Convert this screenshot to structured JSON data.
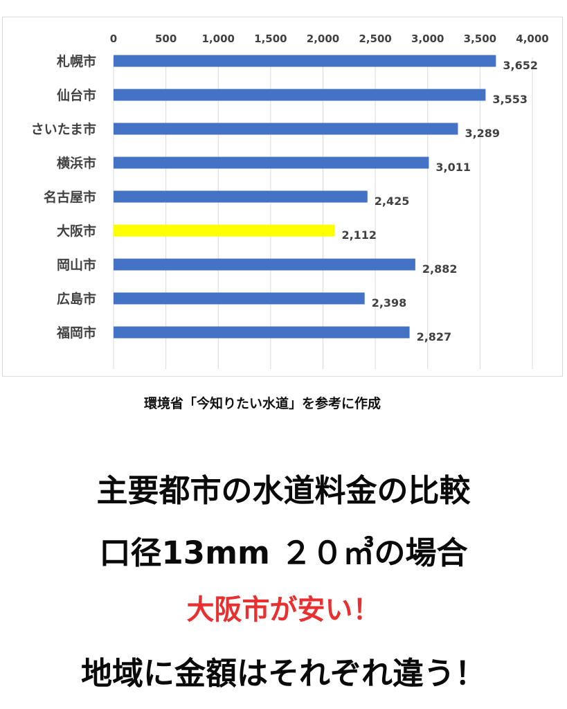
{
  "chart_data": {
    "type": "bar",
    "orientation": "horizontal",
    "categories": [
      "札幌市",
      "仙台市",
      "さいたま市",
      "横浜市",
      "名古屋市",
      "大阪市",
      "岡山市",
      "広島市",
      "福岡市"
    ],
    "values": [
      3652,
      3553,
      3289,
      3011,
      2425,
      2112,
      2882,
      2398,
      2827
    ],
    "value_labels": [
      "3,652",
      "3,553",
      "3,289",
      "3,011",
      "2,425",
      "2,112",
      "2,882",
      "2,398",
      "2,827"
    ],
    "x_ticks": [
      0,
      500,
      1000,
      1500,
      2000,
      2500,
      3000,
      3500,
      4000
    ],
    "x_tick_labels": [
      "0",
      "500",
      "1,000",
      "1,500",
      "2,000",
      "2,500",
      "3,000",
      "3,500",
      "4,000"
    ],
    "xlim": [
      0,
      4000
    ],
    "axis_position": "top",
    "grid": "vertical",
    "colors": {
      "bar": "#4472c4",
      "highlight": "#ffff00",
      "grid": "#d9d9d9",
      "text": "#404040"
    },
    "highlight_index": 5,
    "title": "",
    "xlabel": "",
    "ylabel": ""
  },
  "source_note": "環境省「今知りたい水道」を参考に作成",
  "headlines": {
    "line1": "主要都市の水道料金の比較",
    "line2": "口径13mm ２０㎥の場合",
    "line3": "大阪市が安い！",
    "line4": "地域に金額はそれぞれ違う！"
  }
}
